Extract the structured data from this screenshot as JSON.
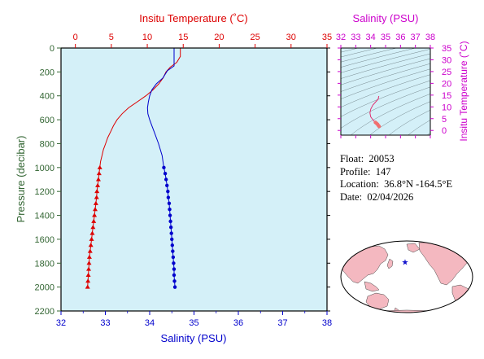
{
  "info": {
    "float_label": "Float:",
    "float_id": "20053",
    "profile_label": "Profile:",
    "profile_no": "147",
    "location_label": "Location:",
    "location": "36.8°N  -164.5°E",
    "date_label": "Date:",
    "date": "02/04/2026"
  },
  "colors": {
    "temperature": "#dd0000",
    "salinity": "#0000cc",
    "ts_axis": "#cc00cc",
    "pressure_axis": "#336633",
    "plot_bg": "#d4f0f8",
    "land": "#f4b8c0",
    "ocean": "#ffffff",
    "float_marker": "#1111cc"
  },
  "chart_data": [
    {
      "type": "line",
      "name": "profile",
      "y_label": "Pressure (decibar)",
      "y_ticks": [
        0,
        200,
        400,
        600,
        800,
        1000,
        1200,
        1400,
        1600,
        1800,
        2000,
        2200
      ],
      "ylim": [
        2200,
        0
      ],
      "top_axis_label": "Insitu Temperature (˚C)",
      "top_ticks": [
        0,
        5,
        10,
        15,
        20,
        25,
        30,
        35
      ],
      "top_lim": [
        -2,
        35
      ],
      "bottom_axis_label": "Salinity (PSU)",
      "bottom_ticks": [
        32,
        33,
        34,
        35,
        36,
        37,
        38
      ],
      "bottom_lim": [
        32,
        38
      ],
      "series": [
        {
          "name": "temperature",
          "axis": "top",
          "marker": "triangle",
          "line": [
            {
              "p": 0,
              "v": 14.6
            },
            {
              "p": 70,
              "v": 14.6
            },
            {
              "p": 120,
              "v": 14.1
            },
            {
              "p": 160,
              "v": 13.2
            },
            {
              "p": 200,
              "v": 12.6
            },
            {
              "p": 250,
              "v": 12.2
            },
            {
              "p": 300,
              "v": 11.6
            },
            {
              "p": 350,
              "v": 10.8
            },
            {
              "p": 400,
              "v": 9.8
            },
            {
              "p": 450,
              "v": 8.6
            },
            {
              "p": 500,
              "v": 7.4
            },
            {
              "p": 550,
              "v": 6.5
            },
            {
              "p": 600,
              "v": 5.8
            },
            {
              "p": 650,
              "v": 5.3
            },
            {
              "p": 700,
              "v": 4.9
            },
            {
              "p": 750,
              "v": 4.5
            },
            {
              "p": 800,
              "v": 4.2
            },
            {
              "p": 850,
              "v": 3.9
            },
            {
              "p": 900,
              "v": 3.7
            },
            {
              "p": 950,
              "v": 3.5
            },
            {
              "p": 1000,
              "v": 3.4
            }
          ],
          "points": [
            {
              "p": 1000,
              "v": 3.4
            },
            {
              "p": 1050,
              "v": 3.3
            },
            {
              "p": 1100,
              "v": 3.2
            },
            {
              "p": 1150,
              "v": 3.1
            },
            {
              "p": 1200,
              "v": 3.0
            },
            {
              "p": 1250,
              "v": 2.95
            },
            {
              "p": 1300,
              "v": 2.85
            },
            {
              "p": 1350,
              "v": 2.75
            },
            {
              "p": 1400,
              "v": 2.65
            },
            {
              "p": 1450,
              "v": 2.55
            },
            {
              "p": 1500,
              "v": 2.45
            },
            {
              "p": 1550,
              "v": 2.35
            },
            {
              "p": 1600,
              "v": 2.25
            },
            {
              "p": 1650,
              "v": 2.15
            },
            {
              "p": 1700,
              "v": 2.05
            },
            {
              "p": 1750,
              "v": 1.95
            },
            {
              "p": 1800,
              "v": 1.9
            },
            {
              "p": 1850,
              "v": 1.85
            },
            {
              "p": 1900,
              "v": 1.8
            },
            {
              "p": 1950,
              "v": 1.75
            },
            {
              "p": 2000,
              "v": 1.7
            }
          ]
        },
        {
          "name": "salinity",
          "axis": "bottom",
          "marker": "circle",
          "line": [
            {
              "p": 0,
              "v": 34.55
            },
            {
              "p": 150,
              "v": 34.55
            },
            {
              "p": 190,
              "v": 34.4
            },
            {
              "p": 250,
              "v": 34.3
            },
            {
              "p": 300,
              "v": 34.15
            },
            {
              "p": 350,
              "v": 34.05
            },
            {
              "p": 400,
              "v": 34.0
            },
            {
              "p": 450,
              "v": 33.97
            },
            {
              "p": 500,
              "v": 33.95
            },
            {
              "p": 550,
              "v": 33.96
            },
            {
              "p": 600,
              "v": 34.0
            },
            {
              "p": 650,
              "v": 34.05
            },
            {
              "p": 700,
              "v": 34.1
            },
            {
              "p": 800,
              "v": 34.2
            },
            {
              "p": 900,
              "v": 34.28
            },
            {
              "p": 1000,
              "v": 34.32
            }
          ],
          "points": [
            {
              "p": 1000,
              "v": 34.32
            },
            {
              "p": 1050,
              "v": 34.35
            },
            {
              "p": 1100,
              "v": 34.37
            },
            {
              "p": 1150,
              "v": 34.39
            },
            {
              "p": 1200,
              "v": 34.41
            },
            {
              "p": 1250,
              "v": 34.42
            },
            {
              "p": 1300,
              "v": 34.44
            },
            {
              "p": 1350,
              "v": 34.45
            },
            {
              "p": 1400,
              "v": 34.46
            },
            {
              "p": 1450,
              "v": 34.47
            },
            {
              "p": 1500,
              "v": 34.48
            },
            {
              "p": 1550,
              "v": 34.49
            },
            {
              "p": 1600,
              "v": 34.5
            },
            {
              "p": 1650,
              "v": 34.51
            },
            {
              "p": 1700,
              "v": 34.52
            },
            {
              "p": 1750,
              "v": 34.53
            },
            {
              "p": 1800,
              "v": 34.54
            },
            {
              "p": 1850,
              "v": 34.55
            },
            {
              "p": 1900,
              "v": 34.55
            },
            {
              "p": 1950,
              "v": 34.56
            },
            {
              "p": 2000,
              "v": 34.57
            }
          ]
        }
      ]
    },
    {
      "type": "scatter",
      "name": "ts_diagram",
      "x_label": "Salinity (PSU)",
      "x_ticks": [
        32,
        33,
        34,
        35,
        36,
        37,
        38
      ],
      "xlim": [
        32,
        38
      ],
      "y_label": "Insitu Temperature (˚C)",
      "y_ticks": [
        0,
        5,
        10,
        15,
        20,
        25,
        30,
        35
      ],
      "ylim": [
        -2,
        35
      ],
      "density_contours": true,
      "trace": [
        {
          "s": 34.55,
          "t": 14.6
        },
        {
          "s": 34.5,
          "t": 13.2
        },
        {
          "s": 34.35,
          "t": 12.2
        },
        {
          "s": 34.15,
          "t": 10.8
        },
        {
          "s": 34.0,
          "t": 9.0
        },
        {
          "s": 33.95,
          "t": 7.4
        },
        {
          "s": 34.0,
          "t": 5.8
        },
        {
          "s": 34.1,
          "t": 4.9
        },
        {
          "s": 34.2,
          "t": 4.2
        },
        {
          "s": 34.32,
          "t": 3.4
        },
        {
          "s": 34.4,
          "t": 3.0
        },
        {
          "s": 34.46,
          "t": 2.6
        },
        {
          "s": 34.52,
          "t": 2.1
        },
        {
          "s": 34.57,
          "t": 1.7
        }
      ]
    },
    {
      "type": "map",
      "name": "float_location",
      "marker": {
        "lat": 36.8,
        "lon": -164.5
      }
    }
  ]
}
